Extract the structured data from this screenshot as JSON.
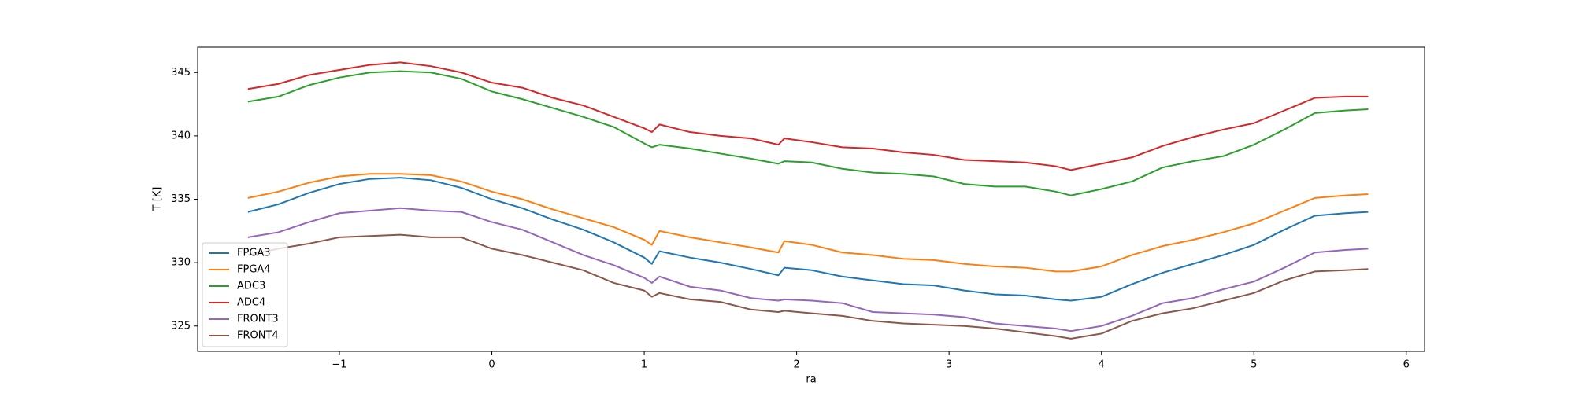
{
  "chart_data": {
    "type": "line",
    "x_label": "ra",
    "y_label": "T [K]",
    "x": [
      -1.6,
      -1.4,
      -1.2,
      -1.0,
      -0.8,
      -0.6,
      -0.4,
      -0.2,
      0,
      0.2,
      0.4,
      0.6,
      0.8,
      1.0,
      1.05,
      1.1,
      1.3,
      1.5,
      1.7,
      1.88,
      1.92,
      2.1,
      2.3,
      2.5,
      2.7,
      2.9,
      3.1,
      3.3,
      3.5,
      3.7,
      3.8,
      4.0,
      4.2,
      4.4,
      4.6,
      4.8,
      5.0,
      5.2,
      5.4,
      5.6,
      5.75
    ],
    "series": [
      {
        "name": "FPGA3",
        "color": "#1f77b4",
        "values": [
          334.0,
          334.6,
          335.5,
          336.2,
          336.6,
          336.7,
          336.5,
          335.9,
          335.0,
          334.3,
          333.4,
          332.6,
          331.6,
          330.4,
          329.9,
          330.9,
          330.4,
          330.0,
          329.5,
          329.0,
          329.6,
          329.4,
          328.9,
          328.6,
          328.3,
          328.2,
          327.8,
          327.5,
          327.4,
          327.1,
          327.0,
          327.3,
          328.3,
          329.2,
          329.9,
          330.6,
          331.4,
          332.6,
          333.7,
          333.9,
          334.0
        ]
      },
      {
        "name": "FPGA4",
        "color": "#ff7f0e",
        "values": [
          335.1,
          335.6,
          336.3,
          336.8,
          337.0,
          337.0,
          336.9,
          336.4,
          335.6,
          335.0,
          334.2,
          333.5,
          332.8,
          331.8,
          331.4,
          332.5,
          332.0,
          331.6,
          331.2,
          330.8,
          331.7,
          331.4,
          330.8,
          330.6,
          330.3,
          330.2,
          329.9,
          329.7,
          329.6,
          329.3,
          329.3,
          329.7,
          330.6,
          331.3,
          331.8,
          332.4,
          333.1,
          334.1,
          335.1,
          335.3,
          335.4
        ]
      },
      {
        "name": "ADC3",
        "color": "#2ca02c",
        "values": [
          342.7,
          343.1,
          344.0,
          344.6,
          345.0,
          345.1,
          345.0,
          344.5,
          343.5,
          342.9,
          342.2,
          341.5,
          340.7,
          339.4,
          339.1,
          339.3,
          339.0,
          338.6,
          338.2,
          337.8,
          338.0,
          337.9,
          337.4,
          337.1,
          337.0,
          336.8,
          336.2,
          336.0,
          336.0,
          335.6,
          335.3,
          335.8,
          336.4,
          337.5,
          338.0,
          338.4,
          339.3,
          340.5,
          341.8,
          342.0,
          342.1
        ]
      },
      {
        "name": "ADC4",
        "color": "#d62728",
        "values": [
          343.7,
          344.1,
          344.8,
          345.2,
          345.6,
          345.8,
          345.5,
          345.0,
          344.2,
          343.8,
          343.0,
          342.4,
          341.5,
          340.6,
          340.3,
          340.9,
          340.3,
          340.0,
          339.8,
          339.3,
          339.8,
          339.5,
          339.1,
          339.0,
          338.7,
          338.5,
          338.1,
          338.0,
          337.9,
          337.6,
          337.3,
          337.8,
          338.3,
          339.2,
          339.9,
          340.5,
          341.0,
          342.0,
          343.0,
          343.1,
          343.1
        ]
      },
      {
        "name": "FRONT3",
        "color": "#9467bd",
        "values": [
          332.0,
          332.4,
          333.2,
          333.9,
          334.1,
          334.3,
          334.1,
          334.0,
          333.2,
          332.6,
          331.6,
          330.6,
          329.8,
          328.8,
          328.4,
          328.9,
          328.1,
          327.8,
          327.2,
          327.0,
          327.1,
          327.0,
          326.8,
          326.1,
          326.0,
          325.9,
          325.7,
          325.2,
          325.0,
          324.8,
          324.6,
          325.0,
          325.8,
          326.8,
          327.2,
          327.9,
          328.5,
          329.6,
          330.8,
          331.0,
          331.1
        ]
      },
      {
        "name": "FRONT4",
        "color": "#8c564b",
        "values": [
          330.6,
          331.1,
          331.5,
          332.0,
          332.1,
          332.2,
          332.0,
          332.0,
          331.1,
          330.6,
          330.0,
          329.4,
          328.4,
          327.8,
          327.3,
          327.6,
          327.1,
          326.9,
          326.3,
          326.1,
          326.2,
          326.0,
          325.8,
          325.4,
          325.2,
          325.1,
          325.0,
          324.8,
          324.5,
          324.2,
          324.0,
          324.4,
          325.4,
          326.0,
          326.4,
          327.0,
          327.6,
          328.6,
          329.3,
          329.4,
          329.5
        ]
      }
    ],
    "xlim": [
      -1.93,
      6.12
    ],
    "ylim": [
      323.0,
      347.0
    ],
    "xticks": [
      {
        "value": -1,
        "label": "−1"
      },
      0,
      1,
      2,
      3,
      4,
      5,
      6
    ],
    "yticks": [
      325,
      330,
      335,
      340,
      345
    ],
    "grid": false,
    "legend": "lower left"
  }
}
